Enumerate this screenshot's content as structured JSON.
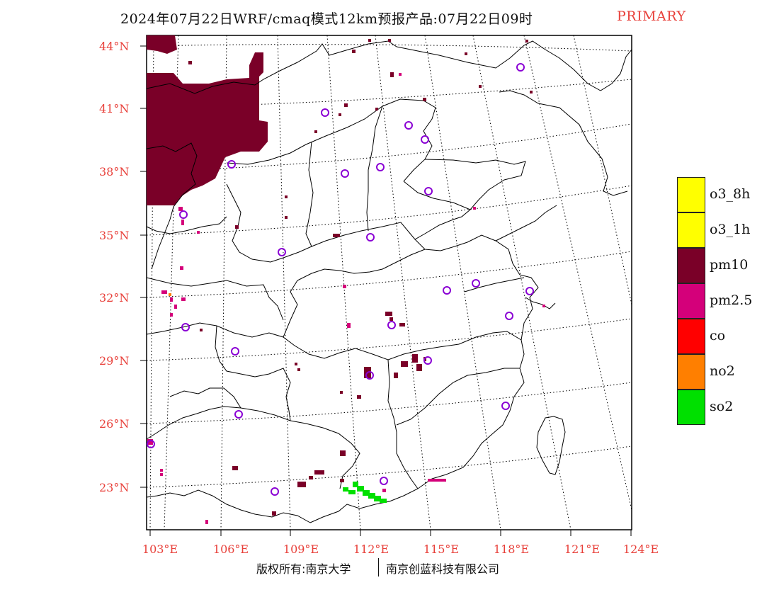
{
  "title": "2024年07月22日WRF/cmaq模式12km预报产品:07月22日09时",
  "title_flag": "PRIMARY",
  "lat_labels": [
    "44°N",
    "41°N",
    "38°N",
    "35°N",
    "32°N",
    "29°N",
    "26°N",
    "23°N"
  ],
  "lon_labels": [
    "103°E",
    "106°E",
    "109°E",
    "112°E",
    "115°E",
    "118°E",
    "121°E",
    "124°E"
  ],
  "legend": [
    {
      "label": "o3_8h",
      "color": "#ffff00"
    },
    {
      "label": "o3_1h",
      "color": "#ffff00"
    },
    {
      "label": "pm10",
      "color": "#7a0028"
    },
    {
      "label": "pm2.5",
      "color": "#d4007a"
    },
    {
      "label": "co",
      "color": "#ff0000"
    },
    {
      "label": "no2",
      "color": "#ff7f00"
    },
    {
      "label": "so2",
      "color": "#00e000"
    }
  ],
  "colors": {
    "axis_label": "#e8403a",
    "station_marker": "#8a00d4",
    "border": "#000000"
  },
  "copyright_left": "版权所有:南京大学",
  "copyright_right": "南京创蓝科技有限公司"
}
